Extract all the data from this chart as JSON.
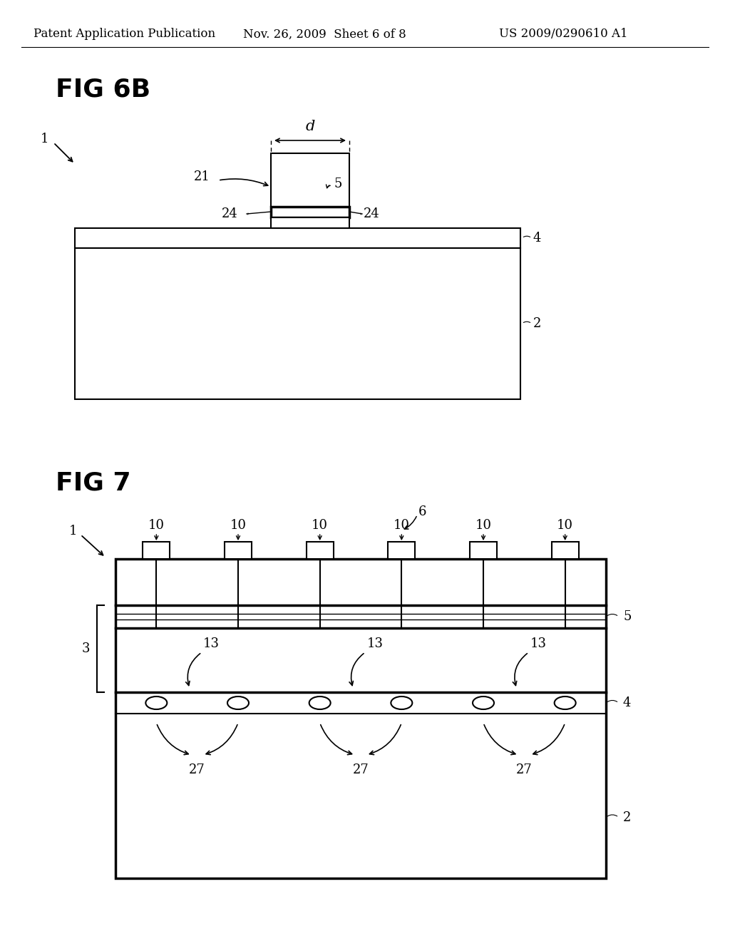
{
  "bg_color": "#ffffff",
  "header_left": "Patent Application Publication",
  "header_mid": "Nov. 26, 2009  Sheet 6 of 8",
  "header_right": "US 2009/0290610 A1",
  "fig6b_title": "FIG 6B",
  "fig7_title": "FIG 7",
  "fig_width": 10.24,
  "fig_height": 13.2,
  "dpi": 100
}
